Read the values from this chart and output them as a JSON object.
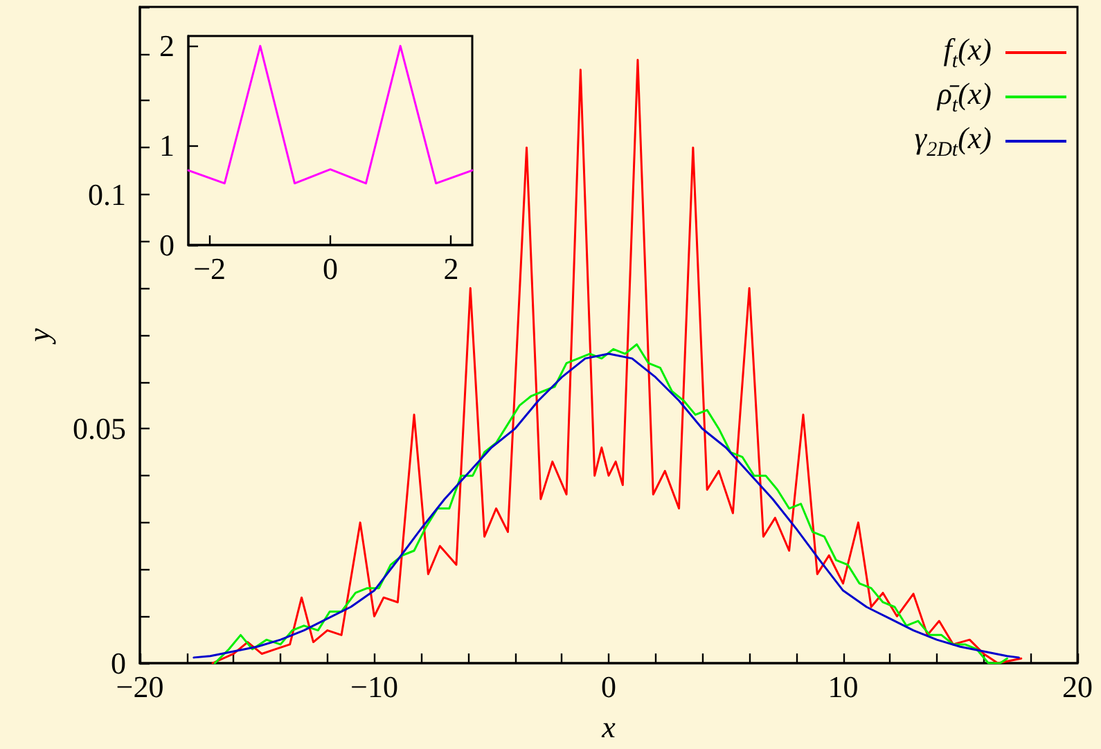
{
  "chart_data": [
    {
      "type": "line",
      "xlabel": "x",
      "ylabel": "y",
      "legend": "top right",
      "grid": false,
      "marker": "none",
      "xlim": [
        -20,
        20
      ],
      "ylim": [
        0,
        0.14
      ],
      "xticks": [
        {
          "value": -20,
          "label": "−20"
        },
        {
          "value": -18,
          "label": null
        },
        {
          "value": -16,
          "label": null
        },
        {
          "value": -14,
          "label": null
        },
        {
          "value": -12,
          "label": null
        },
        {
          "value": -10,
          "label": "−10"
        },
        {
          "value": -8,
          "label": null
        },
        {
          "value": -6,
          "label": null
        },
        {
          "value": -4,
          "label": null
        },
        {
          "value": -2,
          "label": null
        },
        0,
        {
          "value": 2,
          "label": null
        },
        {
          "value": 4,
          "label": null
        },
        {
          "value": 6,
          "label": null
        },
        {
          "value": 8,
          "label": null
        },
        10,
        {
          "value": 12,
          "label": null
        },
        {
          "value": 14,
          "label": null
        },
        {
          "value": 16,
          "label": null
        },
        {
          "value": 18,
          "label": null
        },
        20
      ],
      "yticks": [
        0,
        {
          "value": 0.01,
          "label": null
        },
        {
          "value": 0.02,
          "label": null
        },
        {
          "value": 0.03,
          "label": null
        },
        {
          "value": 0.04,
          "label": null
        },
        0.05,
        {
          "value": 0.06,
          "label": null
        },
        {
          "value": 0.07,
          "label": null
        },
        {
          "value": 0.08,
          "label": null
        },
        {
          "value": 0.09,
          "label": null
        },
        0.1,
        {
          "value": 0.11,
          "label": null
        },
        {
          "value": 0.12,
          "label": null
        },
        {
          "value": 0.13,
          "label": null
        },
        {
          "value": 0.14,
          "label": null
        }
      ],
      "series": [
        {
          "name": "f$_{t}$(x)",
          "color": "#ff0000",
          "x": [
            -16.9,
            -16.0,
            -15.4,
            -14.8,
            -14.2,
            -13.6,
            -13.1,
            -12.6,
            -12.0,
            -11.4,
            -10.6,
            -10.0,
            -9.6,
            -9.0,
            -8.3,
            -7.7,
            -7.2,
            -6.5,
            -5.9,
            -5.3,
            -4.8,
            -4.3,
            -3.5,
            -2.9,
            -2.4,
            -1.8,
            -1.2,
            -0.6,
            -0.3,
            0,
            0.3,
            0.6,
            1.24,
            1.9,
            2.4,
            3.0,
            3.6,
            4.2,
            4.7,
            5.3,
            6.0,
            6.6,
            7.1,
            7.7,
            8.3,
            8.9,
            9.4,
            10.0,
            10.65,
            11.2,
            11.7,
            12.3,
            13.0,
            13.6,
            14.1,
            14.7,
            15.4,
            16.0,
            16.6,
            17.6
          ],
          "values": [
            0.0,
            0.002,
            0.0045,
            0.002,
            0.003,
            0.004,
            0.014,
            0.0045,
            0.007,
            0.006,
            0.03,
            0.01,
            0.014,
            0.013,
            0.053,
            0.019,
            0.025,
            0.021,
            0.08,
            0.027,
            0.033,
            0.028,
            0.11,
            0.035,
            0.043,
            0.036,
            0.1266,
            0.04,
            0.046,
            0.04,
            0.043,
            0.038,
            0.1287,
            0.036,
            0.041,
            0.033,
            0.11,
            0.037,
            0.041,
            0.032,
            0.08,
            0.027,
            0.031,
            0.024,
            0.053,
            0.019,
            0.023,
            0.017,
            0.03,
            0.012,
            0.015,
            0.01,
            0.0148,
            0.006,
            0.009,
            0.004,
            0.005,
            0.002,
            0.0,
            0.001
          ]
        },
        {
          "name": "ρ̄$_{t}$(x)",
          "color": "#00ee00",
          "x": [
            -16.8,
            -16.2,
            -15.7,
            -15.2,
            -14.6,
            -14.0,
            -13.5,
            -13.0,
            -12.4,
            -11.9,
            -11.4,
            -10.8,
            -10.3,
            -9.8,
            -9.3,
            -8.8,
            -8.3,
            -7.8,
            -7.3,
            -6.8,
            -6.3,
            -5.8,
            -5.3,
            -4.8,
            -4.3,
            -3.8,
            -3.3,
            -2.8,
            -2.3,
            -1.8,
            -1.3,
            -0.8,
            -0.3,
            0.2,
            0.7,
            1.2,
            1.7,
            2.2,
            2.7,
            3.2,
            3.7,
            4.2,
            4.7,
            5.2,
            5.7,
            6.2,
            6.7,
            7.2,
            7.7,
            8.2,
            8.7,
            9.2,
            9.7,
            10.2,
            10.7,
            11.2,
            11.7,
            12.2,
            12.7,
            13.2,
            13.7,
            14.2,
            14.7,
            15.2,
            15.7,
            16.2,
            16.7,
            17.0
          ],
          "values": [
            0.0,
            0.003,
            0.006,
            0.003,
            0.005,
            0.004,
            0.007,
            0.008,
            0.007,
            0.011,
            0.011,
            0.015,
            0.016,
            0.016,
            0.021,
            0.023,
            0.024,
            0.029,
            0.033,
            0.033,
            0.04,
            0.04,
            0.045,
            0.047,
            0.051,
            0.055,
            0.057,
            0.058,
            0.059,
            0.064,
            0.065,
            0.066,
            0.065,
            0.067,
            0.066,
            0.068,
            0.064,
            0.063,
            0.058,
            0.056,
            0.053,
            0.054,
            0.05,
            0.045,
            0.044,
            0.04,
            0.04,
            0.037,
            0.033,
            0.034,
            0.028,
            0.027,
            0.022,
            0.021,
            0.017,
            0.016,
            0.013,
            0.012,
            0.008,
            0.009,
            0.006,
            0.006,
            0.004,
            0.004,
            0.003,
            0.0,
            0.0,
            0.001
          ]
        },
        {
          "name": "γ$_{2Dt}$(x)",
          "color": "#0000cc",
          "x": [
            -17.7,
            -17,
            -16,
            -15,
            -14,
            -13,
            -12,
            -11,
            -10,
            -9,
            -8,
            -7,
            -6,
            -5,
            -4,
            -3,
            -2,
            -1,
            0,
            1,
            2,
            3,
            4,
            5,
            6,
            7,
            8,
            9,
            10,
            11,
            12,
            13,
            14,
            15,
            16,
            17,
            17.5
          ],
          "values": [
            0.0012,
            0.0015,
            0.0025,
            0.0035,
            0.005,
            0.007,
            0.0095,
            0.012,
            0.0155,
            0.022,
            0.0287,
            0.035,
            0.0405,
            0.046,
            0.05,
            0.056,
            0.061,
            0.065,
            0.066,
            0.065,
            0.061,
            0.056,
            0.05,
            0.046,
            0.0405,
            0.035,
            0.0287,
            0.022,
            0.0155,
            0.012,
            0.0095,
            0.007,
            0.005,
            0.0035,
            0.0025,
            0.0015,
            0.0012
          ]
        }
      ]
    },
    {
      "type": "line",
      "grid": false,
      "marker": "none",
      "color": "#ff00ff",
      "xlim": [
        -2.35,
        2.35
      ],
      "ylim": [
        0,
        2.1
      ],
      "xticks": [
        {
          "value": -2,
          "label": "−2"
        },
        0,
        2
      ],
      "yticks": [
        0,
        1,
        2
      ],
      "x": [
        -2.35,
        -1.75,
        -1.16,
        -0.59,
        0,
        0.59,
        1.16,
        1.75,
        2.35
      ],
      "values": [
        0.75,
        0.62,
        2.0,
        0.62,
        0.76,
        0.62,
        2.0,
        0.62,
        0.75
      ]
    }
  ]
}
